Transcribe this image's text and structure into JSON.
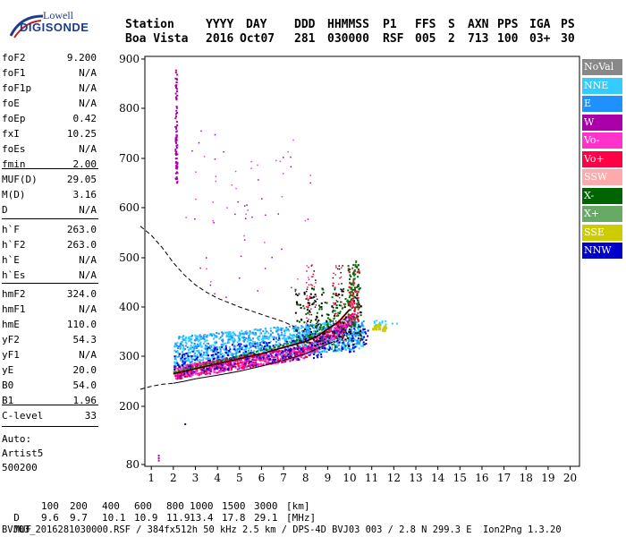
{
  "logo": {
    "line1": "Lowell",
    "line2": "DIGISONDE"
  },
  "header": {
    "labels": [
      "Station",
      "YYYY",
      "DAY",
      "DDD",
      "HHMMSS",
      "P1",
      "FFS",
      "S",
      "AXN",
      "PPS",
      "IGA",
      "PS"
    ],
    "values": [
      "Boa Vista",
      "2016",
      "Oct07",
      "281",
      "030000",
      "RSF",
      "005",
      "2",
      "713",
      "100",
      "03+",
      "30"
    ]
  },
  "params": {
    "group1": [
      {
        "label": "foF2",
        "value": "9.200"
      },
      {
        "label": "foF1",
        "value": "N/A"
      },
      {
        "label": "foF1p",
        "value": "N/A"
      },
      {
        "label": "foE",
        "value": "N/A"
      },
      {
        "label": "foEp",
        "value": "0.42"
      },
      {
        "label": "fxI",
        "value": "10.25"
      },
      {
        "label": "foEs",
        "value": "N/A"
      },
      {
        "label": "fmin",
        "value": "2.00"
      }
    ],
    "group2": [
      {
        "label": "MUF(D)",
        "value": "29.05"
      },
      {
        "label": "M(D)",
        "value": "3.16"
      },
      {
        "label": "D",
        "value": "N/A"
      }
    ],
    "group3": [
      {
        "label": "h`F",
        "value": "263.0"
      },
      {
        "label": "h`F2",
        "value": "263.0"
      },
      {
        "label": "h`E",
        "value": "N/A"
      },
      {
        "label": "h`Es",
        "value": "N/A"
      }
    ],
    "group4": [
      {
        "label": "hmF2",
        "value": "324.0"
      },
      {
        "label": "hmF1",
        "value": "N/A"
      },
      {
        "label": "hmE",
        "value": "110.0"
      },
      {
        "label": "yF2",
        "value": "54.3"
      },
      {
        "label": "yF1",
        "value": "N/A"
      },
      {
        "label": "yE",
        "value": "20.0"
      },
      {
        "label": "B0",
        "value": "54.0"
      },
      {
        "label": "B1",
        "value": "1.96"
      }
    ],
    "group5": [
      {
        "label": "C-level",
        "value": "33"
      }
    ],
    "auto": [
      "Auto:",
      "Artist5",
      "500200"
    ]
  },
  "legend": [
    {
      "label": "NoVal",
      "color": "#888888",
      "text": "#ffffff"
    },
    {
      "label": "NNE",
      "color": "#33ccff",
      "text": "#ffffff"
    },
    {
      "label": "E",
      "color": "#1e90ff",
      "text": "#ffffff"
    },
    {
      "label": "W",
      "color": "#aa00aa",
      "text": "#ffffff"
    },
    {
      "label": "Vo-",
      "color": "#ff33cc",
      "text": "#ffffff"
    },
    {
      "label": "Vo+",
      "color": "#ff0044",
      "text": "#ffffff"
    },
    {
      "label": "SSW",
      "color": "#ffaaaa",
      "text": "#ffffff"
    },
    {
      "label": "X-",
      "color": "#006400",
      "text": "#ffffff"
    },
    {
      "label": "X+",
      "color": "#66aa66",
      "text": "#ffffff"
    },
    {
      "label": "SSE",
      "color": "#cccc00",
      "text": "#ffffff"
    },
    {
      "label": "NNW",
      "color": "#0000cc",
      "text": "#ffffff"
    }
  ],
  "chart_data": {
    "type": "scatter",
    "title": "",
    "xlabel": "",
    "ylabel": "",
    "xlim": [
      0.5,
      20
    ],
    "ylim": [
      80,
      900
    ],
    "x_ticks": [
      1,
      2,
      3,
      4,
      5,
      6,
      7,
      8,
      9,
      10,
      11,
      12,
      13,
      14,
      15,
      16,
      17,
      18,
      19,
      20
    ],
    "y_ticks": [
      80,
      200,
      300,
      400,
      500,
      600,
      700,
      800,
      900
    ],
    "trace_solid_black": {
      "x": [
        2.0,
        2.5,
        3,
        4,
        5,
        6,
        7,
        7.5,
        8,
        8.5,
        9,
        9.3
      ],
      "y": [
        246,
        250,
        255,
        262,
        270,
        280,
        292,
        298,
        305,
        315,
        325,
        330
      ]
    },
    "trace_dashed_black": {
      "x": [
        0.5,
        1.0,
        1.5,
        2,
        2.5,
        3,
        3.5,
        4,
        5,
        6,
        7,
        7.5
      ],
      "y": [
        563,
        545,
        520,
        490,
        465,
        445,
        430,
        418,
        400,
        385,
        370,
        360
      ]
    },
    "trace_dashed_lower": {
      "x": [
        0.5,
        1.0,
        1.5,
        2.0
      ],
      "y": [
        234,
        240,
        244,
        246
      ]
    },
    "trace_green": {
      "x": [
        2.0,
        3,
        4,
        5,
        6,
        7,
        8,
        8.5,
        9,
        9.5,
        10,
        10.2,
        10.3
      ],
      "y": [
        268,
        278,
        290,
        300,
        312,
        322,
        338,
        350,
        365,
        385,
        420,
        460,
        495
      ]
    },
    "trace_red": {
      "x": [
        2.0,
        3,
        4,
        5,
        6,
        7,
        8,
        8.5,
        9,
        9.5,
        10
      ],
      "y": [
        265,
        275,
        285,
        295,
        305,
        318,
        330,
        340,
        355,
        370,
        395
      ]
    }
  },
  "footer": {
    "d_label": "D",
    "d_values": [
      "100",
      "200",
      "400",
      "600",
      "800",
      "1000",
      "1500",
      "3000",
      "[km]"
    ],
    "muf_label": "MUF",
    "muf_values": [
      "9.6",
      "9.7",
      "10.1",
      "10.9",
      "11.9",
      "13.4",
      "17.8",
      "29.1",
      "[MHz]"
    ],
    "info": "BVJ03_2016281030000.RSF / 384fx512h 50 kHz 2.5 km / DPS-4D BVJ03 003 / 2.8 N 299.3 E  Ion2Png 1.3.20"
  }
}
